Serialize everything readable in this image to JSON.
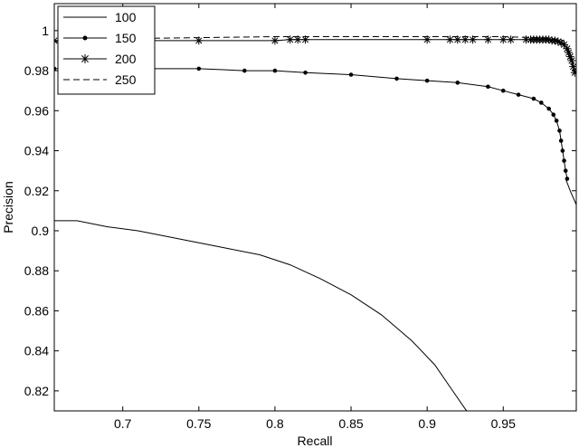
{
  "chart_data": {
    "type": "line",
    "title": "",
    "xlabel": "Recall",
    "ylabel": "Precision",
    "xlim": [
      0.655,
      0.998
    ],
    "ylim": [
      0.81,
      1.0135
    ],
    "xticks": [
      0.7,
      0.75,
      0.8,
      0.85,
      0.9,
      0.95
    ],
    "xtick_labels": [
      "0.7",
      "0.75",
      "0.8",
      "0.85",
      "0.9",
      "0.95"
    ],
    "yticks": [
      0.82,
      0.84,
      0.86,
      0.88,
      0.9,
      0.92,
      0.94,
      0.96,
      0.98,
      1.0
    ],
    "ytick_labels": [
      "0.82",
      "0.84",
      "0.86",
      "0.88",
      "0.9",
      "0.92",
      "0.94",
      "0.96",
      "0.98",
      "1"
    ],
    "grid": false,
    "legend_position": "top-left",
    "series": [
      {
        "name": "100",
        "line": "solid",
        "marker": "none",
        "x": [
          0.655,
          0.67,
          0.69,
          0.71,
          0.73,
          0.75,
          0.77,
          0.79,
          0.81,
          0.83,
          0.85,
          0.87,
          0.89,
          0.905,
          0.915,
          0.925,
          0.928
        ],
        "y": [
          0.905,
          0.905,
          0.902,
          0.9,
          0.897,
          0.894,
          0.891,
          0.888,
          0.883,
          0.876,
          0.868,
          0.858,
          0.845,
          0.833,
          0.822,
          0.811,
          0.808
        ]
      },
      {
        "name": "150",
        "line": "solid",
        "marker": "dot",
        "x": [
          0.655,
          0.68,
          0.7,
          0.72,
          0.75,
          0.78,
          0.8,
          0.82,
          0.85,
          0.88,
          0.9,
          0.92,
          0.94,
          0.95,
          0.96,
          0.97,
          0.975,
          0.98,
          0.983,
          0.985,
          0.987,
          0.988,
          0.989,
          0.99,
          0.991,
          0.992
        ],
        "y": [
          0.981,
          0.981,
          0.981,
          0.981,
          0.981,
          0.98,
          0.98,
          0.979,
          0.978,
          0.976,
          0.975,
          0.974,
          0.972,
          0.97,
          0.968,
          0.966,
          0.964,
          0.961,
          0.958,
          0.955,
          0.95,
          0.945,
          0.94,
          0.935,
          0.93,
          0.926
        ]
      },
      {
        "name": "200",
        "line": "solid",
        "marker": "star",
        "x": [
          0.655,
          0.7,
          0.75,
          0.8,
          0.81,
          0.815,
          0.82,
          0.9,
          0.915,
          0.92,
          0.925,
          0.93,
          0.94,
          0.95,
          0.955,
          0.965,
          0.968,
          0.97,
          0.972,
          0.974,
          0.976,
          0.978,
          0.98,
          0.982,
          0.984,
          0.986,
          0.988,
          0.99,
          0.992,
          0.993,
          0.994,
          0.995,
          0.996,
          0.997
        ],
        "y": [
          0.995,
          0.995,
          0.995,
          0.995,
          0.9955,
          0.9955,
          0.9955,
          0.9955,
          0.9955,
          0.9955,
          0.9955,
          0.9955,
          0.9955,
          0.9955,
          0.9955,
          0.9955,
          0.9955,
          0.9955,
          0.9955,
          0.9955,
          0.9955,
          0.9955,
          0.9955,
          0.995,
          0.995,
          0.9945,
          0.994,
          0.993,
          0.991,
          0.989,
          0.987,
          0.985,
          0.982,
          0.979
        ]
      },
      {
        "name": "250",
        "line": "dashed",
        "marker": "none",
        "x": [
          0.655,
          0.7,
          0.8,
          0.9,
          0.95,
          0.97,
          0.98,
          0.985,
          0.99
        ],
        "y": [
          0.9945,
          0.996,
          0.997,
          0.997,
          0.997,
          0.9965,
          0.996,
          0.9955,
          0.995
        ]
      },
      {
        "name": "",
        "line": "solid",
        "marker": "none",
        "x": [
          0.991,
          0.994,
          0.998
        ],
        "y": [
          0.926,
          0.92,
          0.913
        ]
      }
    ]
  }
}
